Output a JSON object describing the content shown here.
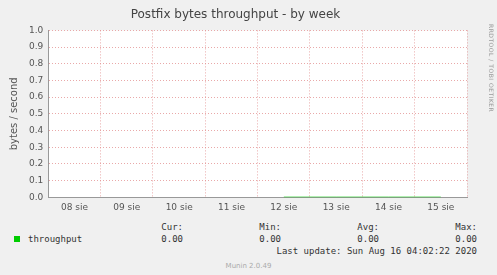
{
  "chart_data": {
    "type": "line",
    "title": "Postfix bytes throughput - by week",
    "y_label": "bytes / second",
    "categories": [
      "08 sie",
      "09 sie",
      "10 sie",
      "11 sie",
      "12 sie",
      "13 sie",
      "14 sie",
      "15 sie"
    ],
    "series": [
      {
        "name": "throughput",
        "color": "#00cc00",
        "values": [
          null,
          null,
          null,
          null,
          0,
          0,
          0,
          0
        ]
      }
    ],
    "ylim": [
      0,
      1
    ],
    "yticks": [
      {
        "value": 0,
        "label": "0.0"
      },
      0.1,
      0.2,
      0.3,
      0.4,
      0.5,
      0.6,
      0.7,
      0.8,
      0.9,
      {
        "value": 1,
        "label": "1.0"
      }
    ],
    "grid": true,
    "summary": {
      "columns": [
        "Cur:",
        "Min:",
        "Avg:",
        "Max:"
      ],
      "rows": [
        {
          "values": [
            0,
            0,
            0,
            0
          ],
          "value_labels": [
            "0.00",
            "0.00",
            "0.00",
            "0.00"
          ]
        }
      ]
    },
    "last_update": "Last update: Sun Aug 16 04:02:22 2020",
    "footer": "Munin 2.0.49",
    "side_text": "RRDTOOL / TOBI OETIKER"
  }
}
